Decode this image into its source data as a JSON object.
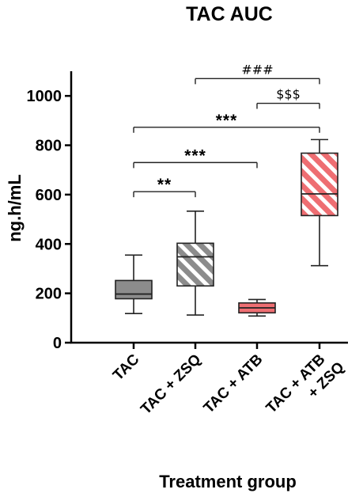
{
  "chart_data": {
    "type": "box",
    "title": "TAC AUC",
    "xlabel": "Treatment group",
    "ylabel": "ng.h/mL",
    "ylim": [
      0,
      1100
    ],
    "yticks": [
      0,
      200,
      400,
      600,
      800,
      1000
    ],
    "ytick_labels": [
      "0",
      "200",
      "400",
      "600",
      "800",
      "1000"
    ],
    "grid": false,
    "categories": [
      [
        "TAC"
      ],
      [
        "TAC + ZSQ"
      ],
      [
        "TAC + ATB"
      ],
      [
        "TAC + ATB",
        "+ ZSQ"
      ]
    ],
    "boxes": [
      {
        "min": 118,
        "q1": 178,
        "median": 197,
        "q3": 252,
        "max": 355,
        "fill": "#8c8c8c",
        "pattern": "solid"
      },
      {
        "min": 112,
        "q1": 230,
        "median": 348,
        "q3": 403,
        "max": 533,
        "fill": "#8c8c8c",
        "pattern": "hatched"
      },
      {
        "min": 108,
        "q1": 121,
        "median": 141,
        "q3": 161,
        "max": 175,
        "fill": "#ee6e72",
        "pattern": "solid"
      },
      {
        "min": 312,
        "q1": 515,
        "median": 603,
        "q3": 768,
        "max": 823,
        "fill": "#ee6e72",
        "pattern": "hatched"
      }
    ],
    "comparisons": [
      {
        "from": 0,
        "to": 1,
        "y": 612,
        "label": "**"
      },
      {
        "from": 0,
        "to": 2,
        "y": 730,
        "label": "***"
      },
      {
        "from": 0,
        "to": 3,
        "y": 873,
        "label": "***"
      },
      {
        "from": 2,
        "to": 3,
        "y": 970,
        "label": "$$$"
      },
      {
        "from": 1,
        "to": 3,
        "y": 1070,
        "label": "###"
      }
    ]
  }
}
